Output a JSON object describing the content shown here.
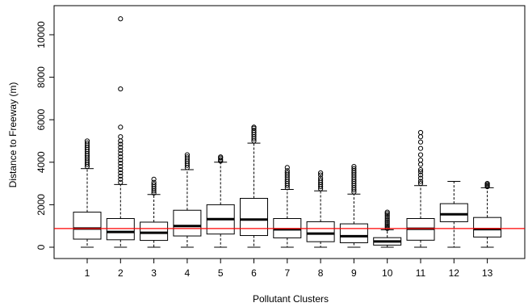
{
  "chart_data": {
    "type": "box",
    "title": "",
    "xlabel": "Pollutant Clusters",
    "ylabel": "Distance to Freeway (m)",
    "ylim": [
      -400,
      10800
    ],
    "yticks": [
      0,
      2000,
      4000,
      6000,
      8000,
      10000
    ],
    "categories": [
      "1",
      "2",
      "3",
      "4",
      "5",
      "6",
      "7",
      "8",
      "9",
      "10",
      "11",
      "12",
      "13"
    ],
    "boxes": [
      {
        "category": "1",
        "min": 0,
        "q1": 380,
        "median": 880,
        "q3": 1650,
        "max": 3700,
        "outliers": [
          3800,
          3900,
          4000,
          4100,
          4200,
          4300,
          4400,
          4500,
          4600,
          4700,
          4800,
          4900,
          5000
        ]
      },
      {
        "category": "2",
        "min": 0,
        "q1": 350,
        "median": 720,
        "q3": 1350,
        "max": 2950,
        "outliers": [
          3050,
          3200,
          3350,
          3500,
          3650,
          3800,
          3950,
          4100,
          4250,
          4400,
          4550,
          4700,
          4850,
          5000,
          5200,
          5650,
          7450,
          10750
        ]
      },
      {
        "category": "3",
        "min": 0,
        "q1": 320,
        "median": 680,
        "q3": 1180,
        "max": 2480,
        "outliers": [
          2550,
          2650,
          2750,
          2850,
          2950,
          3050,
          3200
        ]
      },
      {
        "category": "4",
        "min": 0,
        "q1": 530,
        "median": 1000,
        "q3": 1740,
        "max": 3650,
        "outliers": [
          3750,
          3850,
          3950,
          4050,
          4150,
          4250,
          4350
        ]
      },
      {
        "category": "5",
        "min": 0,
        "q1": 620,
        "median": 1320,
        "q3": 2000,
        "max": 4000,
        "outliers": [
          4050,
          4120,
          4200,
          4250
        ]
      },
      {
        "category": "6",
        "min": 0,
        "q1": 550,
        "median": 1300,
        "q3": 2300,
        "max": 4900,
        "outliers": [
          5000,
          5100,
          5200,
          5300,
          5400,
          5500,
          5600,
          5650
        ]
      },
      {
        "category": "7",
        "min": 0,
        "q1": 440,
        "median": 840,
        "q3": 1350,
        "max": 2720,
        "outliers": [
          2800,
          2900,
          3000,
          3100,
          3200,
          3300,
          3400,
          3500,
          3600,
          3750
        ]
      },
      {
        "category": "8",
        "min": 0,
        "q1": 260,
        "median": 640,
        "q3": 1200,
        "max": 2650,
        "outliers": [
          2750,
          2850,
          2950,
          3050,
          3150,
          3250,
          3400,
          3500
        ]
      },
      {
        "category": "9",
        "min": 0,
        "q1": 210,
        "median": 520,
        "q3": 1100,
        "max": 2500,
        "outliers": [
          2600,
          2700,
          2800,
          2900,
          3000,
          3100,
          3200,
          3300,
          3400,
          3500,
          3600,
          3700,
          3800
        ]
      },
      {
        "category": "10",
        "min": 0,
        "q1": 100,
        "median": 270,
        "q3": 450,
        "max": 820,
        "outliers": [
          880,
          950,
          1020,
          1100,
          1180,
          1260,
          1340,
          1420,
          1500,
          1580,
          1650
        ]
      },
      {
        "category": "11",
        "min": 0,
        "q1": 330,
        "median": 870,
        "q3": 1350,
        "max": 2900,
        "outliers": [
          3000,
          3100,
          3250,
          3400,
          3550,
          3650,
          3900,
          4100,
          4350,
          4650,
          4950,
          5200,
          5400
        ]
      },
      {
        "category": "12",
        "min": 0,
        "q1": 1200,
        "median": 1550,
        "q3": 2050,
        "max": 3100,
        "outliers": []
      },
      {
        "category": "13",
        "min": 0,
        "q1": 480,
        "median": 850,
        "q3": 1400,
        "max": 2800,
        "outliers": [
          2850,
          2900,
          2950,
          3000
        ]
      }
    ],
    "reference_line": {
      "y": 880,
      "color": "#ff0000"
    },
    "grid": false,
    "legend": "none"
  }
}
